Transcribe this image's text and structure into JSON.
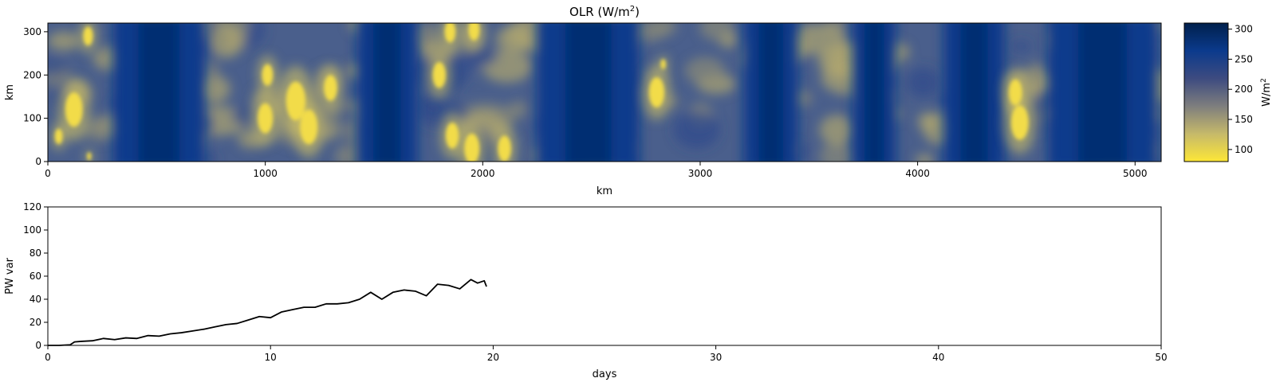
{
  "chart_data": [
    {
      "type": "heatmap",
      "title_main": "OLR (W/m",
      "title_sup": "2",
      "title_end": ")",
      "xlabel": "km",
      "ylabel": "km",
      "xlim": [
        0,
        5120
      ],
      "ylim": [
        0,
        320
      ],
      "xticks": [
        0,
        1000,
        2000,
        3000,
        4000,
        5000
      ],
      "yticks": [
        0,
        100,
        200,
        300
      ],
      "colorbar": {
        "label_main": "W/m",
        "label_sup": "2",
        "range": [
          80,
          310
        ],
        "ticks": [
          100,
          150,
          200,
          250,
          300
        ],
        "colors": [
          "#fde737",
          "#c6b96a",
          "#7e7e7e",
          "#3d4b80",
          "#0b3a8c",
          "#00204c"
        ]
      },
      "clear_sky_bands_km": [
        [
          300,
          720
        ],
        [
          1420,
          1700
        ],
        [
          2250,
          2720
        ],
        [
          3200,
          3450
        ],
        [
          3700,
          3900
        ],
        [
          4120,
          4400
        ],
        [
          4600,
          5100
        ]
      ],
      "cloud_cells": [
        {
          "x": 120,
          "y": 120,
          "r": 40
        },
        {
          "x": 50,
          "y": 58,
          "r": 18
        },
        {
          "x": 185,
          "y": 290,
          "r": 22
        },
        {
          "x": 190,
          "y": 12,
          "r": 10
        },
        {
          "x": 1000,
          "y": 100,
          "r": 35
        },
        {
          "x": 1010,
          "y": 200,
          "r": 25
        },
        {
          "x": 1300,
          "y": 170,
          "r": 30
        },
        {
          "x": 1140,
          "y": 140,
          "r": 45
        },
        {
          "x": 1200,
          "y": 80,
          "r": 40
        },
        {
          "x": 1800,
          "y": 200,
          "r": 30
        },
        {
          "x": 1950,
          "y": 30,
          "r": 35
        },
        {
          "x": 1860,
          "y": 60,
          "r": 30
        },
        {
          "x": 2100,
          "y": 30,
          "r": 30
        },
        {
          "x": 1960,
          "y": 305,
          "r": 25
        },
        {
          "x": 1850,
          "y": 300,
          "r": 25
        },
        {
          "x": 2830,
          "y": 225,
          "r": 12
        },
        {
          "x": 2800,
          "y": 160,
          "r": 35
        },
        {
          "x": 4470,
          "y": 90,
          "r": 40
        },
        {
          "x": 4450,
          "y": 160,
          "r": 30
        }
      ]
    },
    {
      "type": "line",
      "xlabel": "days",
      "ylabel": "PW var",
      "xlim": [
        0,
        50
      ],
      "ylim": [
        0,
        120
      ],
      "xticks": [
        0,
        10,
        20,
        30,
        40,
        50
      ],
      "yticks": [
        0,
        20,
        40,
        60,
        80,
        100,
        120
      ],
      "color": "#000000",
      "x": [
        0,
        0.5,
        1.0,
        1.2,
        1.5,
        2.0,
        2.5,
        3.0,
        3.5,
        4.0,
        4.5,
        5.0,
        5.5,
        6.0,
        6.5,
        7.0,
        7.5,
        8.0,
        8.5,
        9.0,
        9.5,
        10.0,
        10.5,
        11.0,
        11.5,
        12.0,
        12.5,
        13.0,
        13.5,
        14.0,
        14.5,
        15.0,
        15.5,
        16.0,
        16.5,
        17.0,
        17.5,
        18.0,
        18.5,
        19.0,
        19.3,
        19.6,
        19.7
      ],
      "y": [
        0,
        0,
        0.5,
        3,
        3.5,
        4,
        6,
        5,
        6.5,
        6,
        8.5,
        8,
        10,
        11,
        12.5,
        14,
        16,
        18,
        19,
        22,
        25,
        24,
        29,
        31,
        33,
        33,
        36,
        36,
        37,
        40,
        46,
        40,
        46,
        48,
        47,
        43,
        53,
        52,
        49,
        57,
        54,
        56,
        51
      ]
    }
  ]
}
